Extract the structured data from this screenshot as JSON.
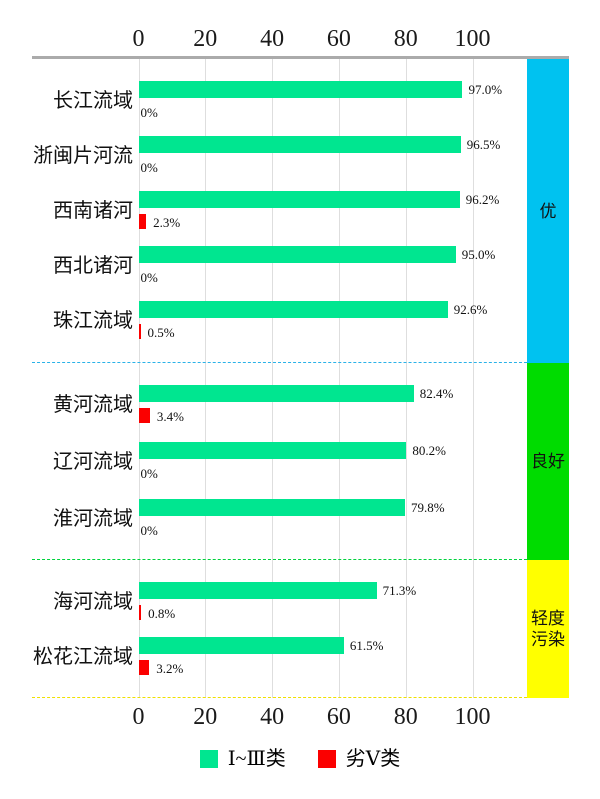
{
  "chart_data": {
    "type": "bar",
    "orientation": "horizontal",
    "title": "",
    "axis": {
      "ticks": [
        "0",
        "20",
        "40",
        "60",
        "80",
        "100"
      ],
      "tick_values": [
        0,
        20,
        40,
        60,
        80,
        100
      ],
      "range": [
        0,
        100
      ],
      "grid": true,
      "tick_positions": "top-and-bottom"
    },
    "categories": [
      "长江流域",
      "浙闽片河流",
      "西南诸河",
      "西北诸河",
      "珠江流域",
      "黄河流域",
      "辽河流域",
      "淮河流域",
      "海河流域",
      "松花江流域"
    ],
    "series": [
      {
        "name": "Ⅰ~Ⅲ类",
        "color": "#00E690",
        "values": [
          97.0,
          96.5,
          96.2,
          95.0,
          92.6,
          82.4,
          80.2,
          79.8,
          71.3,
          61.5
        ],
        "labels": [
          "97.0%",
          "96.5%",
          "96.2%",
          "95.0%",
          "92.6%",
          "82.4%",
          "80.2%",
          "79.8%",
          "71.3%",
          "61.5%"
        ]
      },
      {
        "name": "劣Ⅴ类",
        "color": "#FB0000",
        "values": [
          0,
          0,
          2.3,
          0,
          0.5,
          3.4,
          0,
          0,
          0.8,
          3.2
        ],
        "labels": [
          "0%",
          "0%",
          "2.3%",
          "0%",
          "0.5%",
          "3.4%",
          "0%",
          "0%",
          "0.8%",
          "3.2%"
        ]
      }
    ],
    "groups": [
      {
        "label": "优",
        "rows": 5,
        "band_color": "#00C2F0",
        "divider_color": "#2AB2E8"
      },
      {
        "label": "良好",
        "rows": 3,
        "band_color": "#00DC00",
        "divider_color": "#00D23C"
      },
      {
        "label": "轻度\n污染",
        "rows": 2,
        "band_color": "#FFFF00",
        "divider_color": "#EFE000"
      }
    ],
    "legend": {
      "position": "bottom",
      "items": [
        {
          "label": "Ⅰ~Ⅲ类",
          "color": "#00E690"
        },
        {
          "label": "劣Ⅴ类",
          "color": "#FB0000"
        }
      ]
    }
  },
  "colors": {
    "axis_line": "#ababab",
    "gridline": "#dedede",
    "text": "#000000",
    "background": "#ffffff"
  }
}
